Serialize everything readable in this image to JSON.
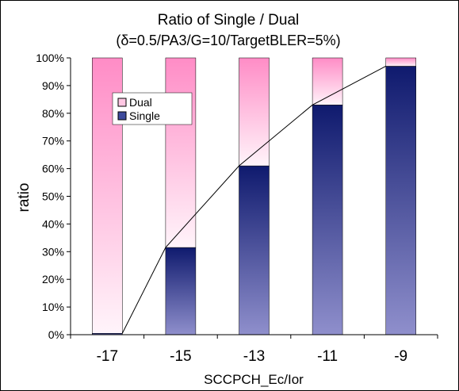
{
  "chart_data": {
    "type": "bar",
    "stacked": true,
    "title": "Ratio of Single / Dual",
    "subtitle": "(δ=0.5/PA3/G=10/TargetBLER=5%)",
    "xlabel": "SCCPCH_Ec/Ior",
    "ylabel": "ratio",
    "categories": [
      "-17",
      "-15",
      "-13",
      "-11",
      "-9"
    ],
    "series": [
      {
        "name": "Single",
        "values": [
          0.5,
          31.5,
          61,
          83,
          97
        ]
      },
      {
        "name": "Dual",
        "values": [
          99.5,
          68.5,
          39,
          17,
          3
        ]
      }
    ],
    "ylim": [
      0,
      100
    ],
    "yticks": [
      "0%",
      "10%",
      "20%",
      "30%",
      "40%",
      "50%",
      "60%",
      "70%",
      "80%",
      "90%",
      "100%"
    ],
    "legend": {
      "position": "top-left inside plot",
      "entries": [
        "Dual",
        "Single"
      ]
    },
    "line_overlay": "connects top of Single segment of each bar",
    "grid": false,
    "colors": {
      "single_dark": "#0f1a6e",
      "single_light": "#8f8fcc",
      "dual_dark": "#ff8cc6",
      "dual_light": "#fff4fa"
    }
  }
}
